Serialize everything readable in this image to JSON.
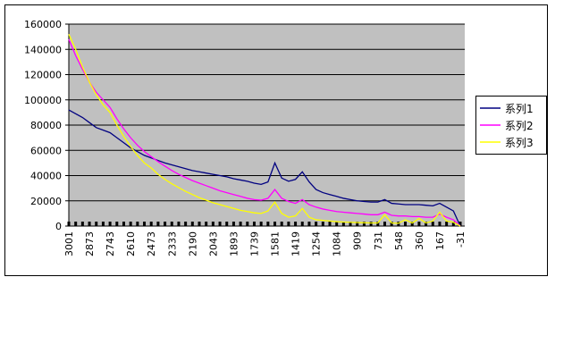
{
  "chart_data": {
    "type": "line",
    "categories": [
      "3001",
      null,
      null,
      "2873",
      null,
      null,
      "2743",
      null,
      null,
      "2610",
      null,
      null,
      "2473",
      null,
      null,
      "2333",
      null,
      null,
      "2190",
      null,
      null,
      "2043",
      null,
      null,
      "1893",
      null,
      null,
      "1739",
      null,
      null,
      "1581",
      null,
      null,
      "1419",
      null,
      null,
      "1254",
      null,
      null,
      "1084",
      null,
      null,
      "909",
      null,
      null,
      "731",
      null,
      null,
      "548",
      null,
      null,
      "360",
      null,
      null,
      "167",
      null,
      null,
      "-31"
    ],
    "series": [
      {
        "name": "系列1",
        "color": "#000080",
        "values": [
          92000,
          89000,
          86000,
          82000,
          78000,
          76000,
          74000,
          70000,
          66000,
          62000,
          59000,
          56000,
          54000,
          52000,
          50000,
          48500,
          47000,
          45500,
          44000,
          43000,
          42000,
          41000,
          40000,
          39000,
          37500,
          36500,
          35500,
          34000,
          33000,
          35000,
          50000,
          38000,
          35500,
          37000,
          43000,
          35000,
          29000,
          26500,
          25000,
          23500,
          22000,
          21000,
          20000,
          19500,
          19000,
          19000,
          21000,
          18000,
          17500,
          17000,
          17000,
          17000,
          16500,
          16000,
          18000,
          15000,
          12000,
          0
        ]
      },
      {
        "name": "系列2",
        "color": "#ff00ff",
        "values": [
          148000,
          135000,
          124000,
          114000,
          106000,
          100000,
          94000,
          85000,
          77000,
          70000,
          64000,
          59000,
          55000,
          51000,
          47500,
          44000,
          41000,
          38500,
          36000,
          34000,
          32000,
          30000,
          28000,
          26500,
          25000,
          23500,
          22000,
          21000,
          20500,
          22000,
          29000,
          22000,
          19500,
          18000,
          21000,
          17000,
          15000,
          13500,
          12500,
          11500,
          11000,
          10500,
          10000,
          9500,
          9000,
          9000,
          11000,
          8500,
          8000,
          8000,
          7500,
          7500,
          7000,
          7000,
          9500,
          7000,
          5000,
          0
        ]
      },
      {
        "name": "系列3",
        "color": "#ffff00",
        "values": [
          152000,
          140000,
          126000,
          114000,
          104000,
          96000,
          90000,
          80000,
          71000,
          63000,
          56000,
          50000,
          46000,
          41000,
          37000,
          33500,
          30500,
          27500,
          25000,
          22500,
          20500,
          18500,
          17000,
          15500,
          14000,
          12500,
          11500,
          10500,
          10000,
          12000,
          19000,
          10000,
          7000,
          8000,
          14000,
          7000,
          5000,
          4500,
          4000,
          3500,
          3200,
          3000,
          2800,
          2600,
          2500,
          2500,
          9000,
          2500,
          2200,
          5000,
          2500,
          6000,
          2500,
          4000,
          11000,
          4000,
          3000,
          0
        ]
      }
    ],
    "ylim": [
      0,
      160000
    ],
    "yticks": [
      0,
      20000,
      40000,
      60000,
      80000,
      100000,
      120000,
      140000,
      160000
    ],
    "grid": true,
    "legend": "right",
    "plot_background": "#c0c0c0"
  }
}
